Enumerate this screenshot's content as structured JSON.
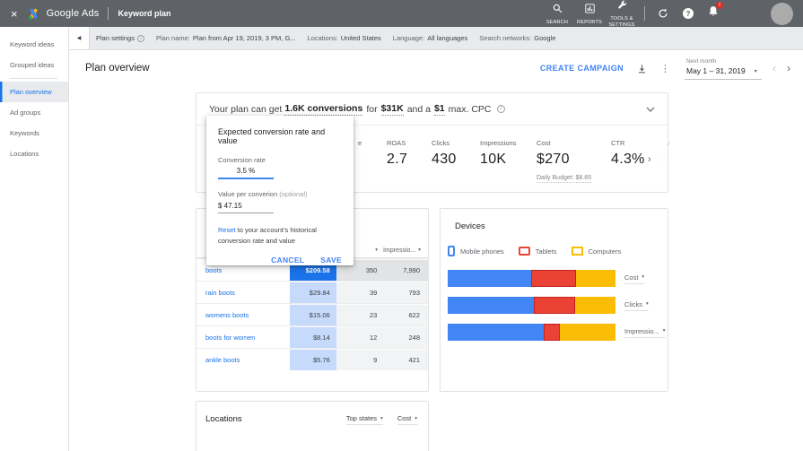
{
  "colors": {
    "blue": "#4285f4",
    "red": "#ea4335",
    "red_border": "#c5221f",
    "yellow": "#fbbc04",
    "link": "#1a73e8",
    "selected_cell": "#1a73e8"
  },
  "icons": {
    "close": "×",
    "more": "⋮",
    "caret": "▾",
    "chevron_left": "‹",
    "chevron_right": "›",
    "collapse": "◀",
    "forward": "›",
    "help": "?",
    "info": "i"
  },
  "app_bar": {
    "brand": "Google Ads",
    "page_title": "Keyword plan",
    "nav_search": "SEARCH",
    "nav_reports": "REPORTS",
    "nav_tools": "TOOLS & SETTINGS",
    "notification_badge": "!"
  },
  "plan_bar": {
    "settings_label": "Plan settings",
    "plan_name_label": "Plan name:",
    "plan_name_value": "Plan from Apr 19, 2019, 3 PM, G...",
    "locations_label": "Locations:",
    "locations_value": "United States",
    "language_label": "Language:",
    "language_value": "All languages",
    "networks_label": "Search networks:",
    "networks_value": "Google"
  },
  "sidebar": {
    "items": [
      {
        "label": "Keyword ideas",
        "selected": false
      },
      {
        "label": "Grouped ideas",
        "selected": false
      },
      {
        "label": "Plan overview",
        "selected": true
      },
      {
        "label": "Ad groups",
        "selected": false
      },
      {
        "label": "Keywords",
        "selected": false
      },
      {
        "label": "Locations",
        "selected": false
      }
    ]
  },
  "header": {
    "title": "Plan overview",
    "create_campaign": "CREATE CAMPAIGN",
    "period_label": "Next month",
    "period_value": "May 1 – 31, 2019"
  },
  "banner": {
    "text_1": "Your plan can get",
    "conversions": "1.6K conversions",
    "text_2": "for",
    "cost": "$31K",
    "text_3": "and a",
    "cpc": "$1",
    "text_4": "max. CPC"
  },
  "metrics": {
    "partial_left_label": "e",
    "items": [
      {
        "label": "ROAS",
        "value": "2.7"
      },
      {
        "label": "Clicks",
        "value": "430"
      },
      {
        "label": "Impressions",
        "value": "10K"
      },
      {
        "label": "Cost",
        "value": "$270",
        "sub": "Daily Budget: $8.85"
      },
      {
        "label": "CTR",
        "value": "4.3%"
      }
    ],
    "overflow_label": "Av",
    "overflow_value": "$"
  },
  "dialog": {
    "title": "Expected conversion rate and value",
    "rate_label": "Conversion rate",
    "rate_value": "3.5 %",
    "value_label": "Value per converion",
    "value_optional": "(optional)",
    "value_value": "$ 47.15",
    "reset_link": "Reset",
    "reset_text": " to your account’s historical conversion rate and value",
    "cancel": "CANCEL",
    "save": "SAVE"
  },
  "keywords_card": {
    "impressions_header": "Impressio...",
    "rows": [
      {
        "keyword": "boots",
        "cost": "$209.58",
        "clicks": "350",
        "impressions": "7,990"
      },
      {
        "keyword": "rain boots",
        "cost": "$29.84",
        "clicks": "39",
        "impressions": "793"
      },
      {
        "keyword": "womens boots",
        "cost": "$15.06",
        "clicks": "23",
        "impressions": "622"
      },
      {
        "keyword": "boots for women",
        "cost": "$8.14",
        "clicks": "12",
        "impressions": "248"
      },
      {
        "keyword": "ankle boots",
        "cost": "$5.76",
        "clicks": "9",
        "impressions": "421"
      }
    ]
  },
  "devices": {
    "title": "Devices",
    "legend": [
      {
        "label": "Mobile phones"
      },
      {
        "label": "Tablets"
      },
      {
        "label": "Computers"
      }
    ],
    "rows": [
      {
        "label": "Cost",
        "segments": [
          {
            "color": "blue",
            "pct": 49.5
          },
          {
            "color": "red",
            "pct": 27
          },
          {
            "color": "yellow",
            "pct": 23.5
          }
        ]
      },
      {
        "label": "Clicks",
        "segments": [
          {
            "color": "blue",
            "pct": 51.5
          },
          {
            "color": "red",
            "pct": 24.5
          },
          {
            "color": "yellow",
            "pct": 24
          }
        ]
      },
      {
        "label": "Impressio...",
        "segments": [
          {
            "color": "blue",
            "pct": 57
          },
          {
            "color": "red",
            "pct": 10
          },
          {
            "color": "yellow",
            "pct": 33
          }
        ]
      }
    ]
  },
  "locations_card": {
    "title": "Locations",
    "group_by": "Top states",
    "metric": "Cost"
  }
}
